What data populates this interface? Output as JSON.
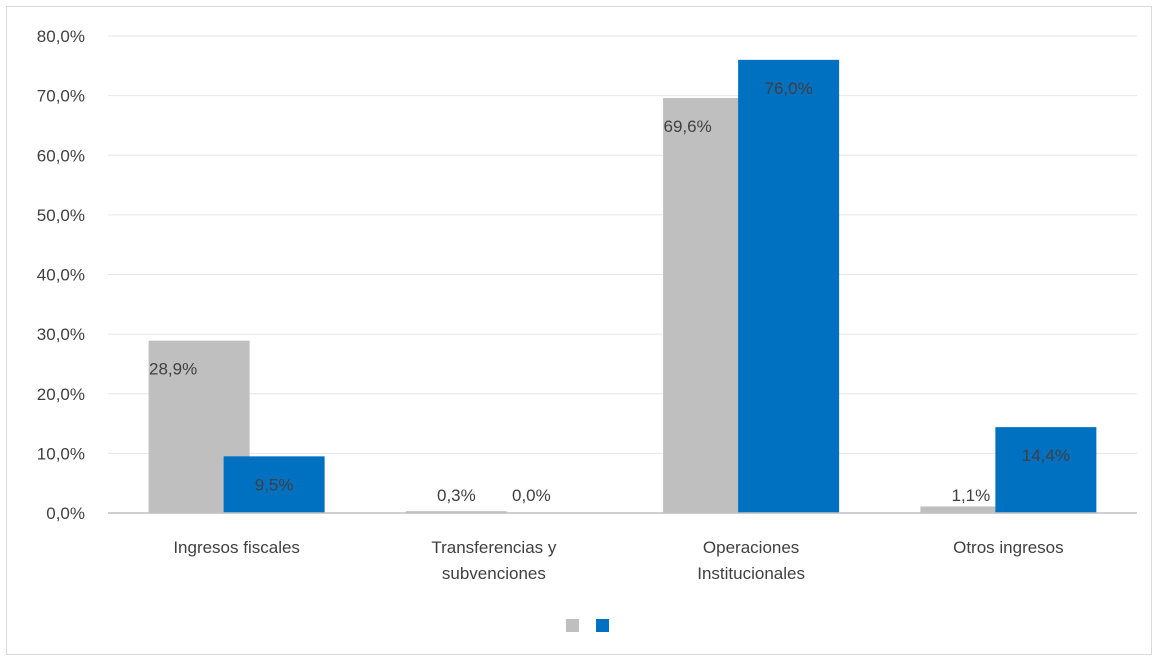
{
  "chart_data": {
    "type": "bar",
    "categories": [
      [
        "Ingresos fiscales"
      ],
      [
        "Transferencias y",
        "subvenciones"
      ],
      [
        "Operaciones",
        "Institucionales"
      ],
      [
        "Otros ingresos"
      ]
    ],
    "series": [
      {
        "values": [
          28.9,
          0.3,
          69.6,
          1.1
        ],
        "labels": [
          "28,9%",
          "0,3%",
          "69,6%",
          "1,1%"
        ],
        "color": "#bfbfbf"
      },
      {
        "values": [
          9.5,
          0.0,
          76.0,
          14.4
        ],
        "labels": [
          "9,5%",
          "0,0%",
          "76,0%",
          "14,4%"
        ],
        "color": "#0070c0"
      }
    ],
    "y_ticks": [
      "0,0%",
      "10,0%",
      "20,0%",
      "30,0%",
      "40,0%",
      "50,0%",
      "60,0%",
      "70,0%",
      "80,0%"
    ],
    "ylim": [
      0,
      80
    ],
    "grid": true,
    "legend_position": "bottom",
    "title": "",
    "xlabel": "",
    "ylabel": ""
  }
}
